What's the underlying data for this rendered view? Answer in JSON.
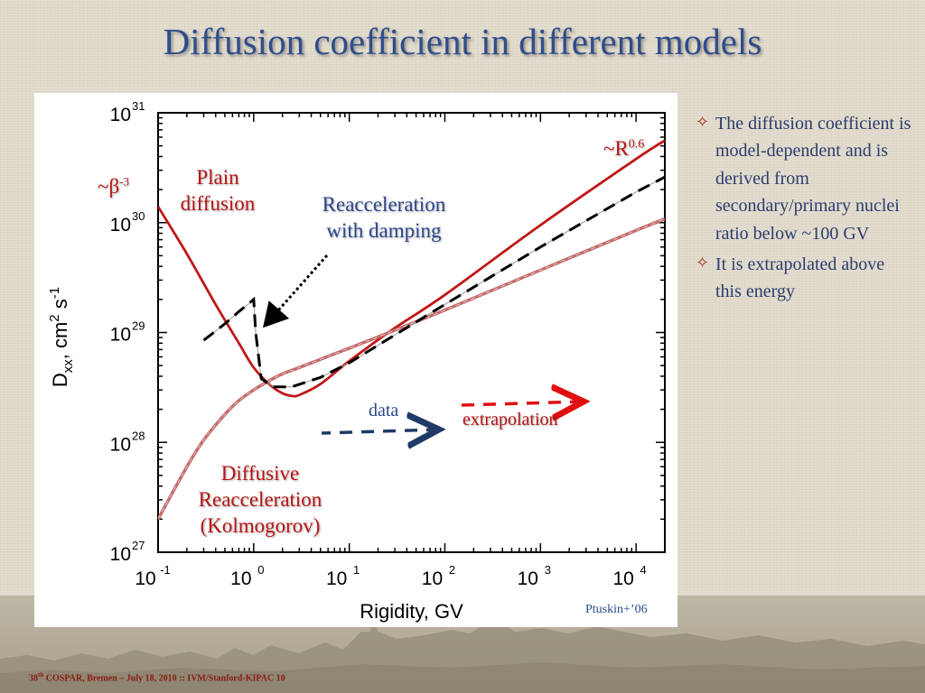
{
  "slide": {
    "title": "Diffusion coefficient in different models",
    "credit": "Ptuskin+’06",
    "footer": {
      "pre": "38",
      "sup": "th",
      "post": " COSPAR, Bremen – July 18, 2010 :: IVM/Stanford-KIPAC  10"
    }
  },
  "bullets": [
    {
      "icon": "four-point-star-icon",
      "text": "The diffusion coefficient is model-dependent and is derived from secondary/primary nuclei ratio below ~100 GV"
    },
    {
      "icon": "four-point-star-icon",
      "text": "It is extrapolated above this energy"
    }
  ],
  "annotations": {
    "beta": {
      "base": "~β",
      "sup": "-3"
    },
    "rpow": {
      "base": "~R",
      "sup": "0.6"
    },
    "plain": [
      "Plain",
      "diffusion"
    ],
    "reacc_damp": [
      "Reacceleration",
      "with damping"
    ],
    "diffusive": [
      "Diffusive",
      "Reacceleration",
      "(Kolmogorov)"
    ],
    "data": "data",
    "extrap": "extrapolation"
  },
  "colors": {
    "plain": "#c01818",
    "reacc": "#c36a6a",
    "damping": "#000000",
    "data_arrow": "#1f3a66",
    "extrap_arrow": "#e01010",
    "title": "#2f4d8a"
  },
  "chart_data": {
    "type": "line",
    "xscale": "log",
    "yscale": "log",
    "xlim": [
      0.1,
      20000
    ],
    "ylim": [
      1e+27,
      1e+31
    ],
    "xticks": [
      {
        "base": "10",
        "exp": "-1",
        "value": 0.1
      },
      {
        "base": "10",
        "exp": "0",
        "value": 1
      },
      {
        "base": "10",
        "exp": "1",
        "value": 10
      },
      {
        "base": "10",
        "exp": "2",
        "value": 100
      },
      {
        "base": "10",
        "exp": "3",
        "value": 1000
      },
      {
        "base": "10",
        "exp": "4",
        "value": 10000
      }
    ],
    "yticks": [
      {
        "base": "10",
        "exp": "27",
        "value": 1e+27
      },
      {
        "base": "10",
        "exp": "28",
        "value": 1e+28
      },
      {
        "base": "10",
        "exp": "29",
        "value": 1e+29
      },
      {
        "base": "10",
        "exp": "30",
        "value": 1e+30
      },
      {
        "base": "10",
        "exp": "31",
        "value": 1e+31
      }
    ],
    "xlabel": "Rigidity, GV",
    "ylabel": {
      "main": "D",
      "sub": "xx",
      "rest1": ", cm",
      "sup1": "2",
      "rest2": " s",
      "sup2": "-1"
    },
    "series": [
      {
        "key": "plain",
        "style": "solid",
        "x": [
          0.1,
          0.2,
          0.4,
          0.7,
          1.0,
          1.5,
          2.0,
          2.5,
          3.0,
          5,
          10,
          30,
          100,
          1000,
          10000,
          20000
        ],
        "y": [
          1.4e+30,
          5.2e+29,
          1.8e+29,
          8e+28,
          4.8e+28,
          3.3e+28,
          2.8e+28,
          2.65e+28,
          2.7e+28,
          3.4e+28,
          5.5e+28,
          1.1e+29,
          2.2e+29,
          9.5e+29,
          3.8e+30,
          5.6e+30
        ]
      },
      {
        "key": "reacc",
        "style": "solid",
        "x": [
          0.1,
          0.2,
          0.3,
          0.5,
          0.7,
          1.0,
          1.5,
          2,
          3,
          5,
          10,
          30,
          100,
          1000,
          10000,
          20000
        ],
        "y": [
          2e+27,
          6e+27,
          1.05e+28,
          1.8e+28,
          2.4e+28,
          3e+28,
          3.7e+28,
          4.2e+28,
          4.8e+28,
          5.7e+28,
          7.2e+28,
          1.05e+29,
          1.6e+29,
          3.7e+29,
          8.5e+29,
          1.08e+30
        ]
      },
      {
        "key": "damping",
        "style": "dashed",
        "x": [
          0.3,
          0.5,
          0.7,
          0.9,
          1.0,
          1.05,
          1.2,
          1.6,
          2.5,
          5,
          10,
          30,
          100,
          1000,
          10000,
          20000
        ],
        "y": [
          8.5e+28,
          1.2e+29,
          1.55e+29,
          1.85e+29,
          2e+29,
          1e+29,
          3.8e+28,
          3.2e+28,
          3.2e+28,
          3.9e+28,
          5.3e+28,
          9.5e+28,
          1.8e+29,
          6e+29,
          1.9e+30,
          2.6e+30
        ]
      }
    ]
  }
}
